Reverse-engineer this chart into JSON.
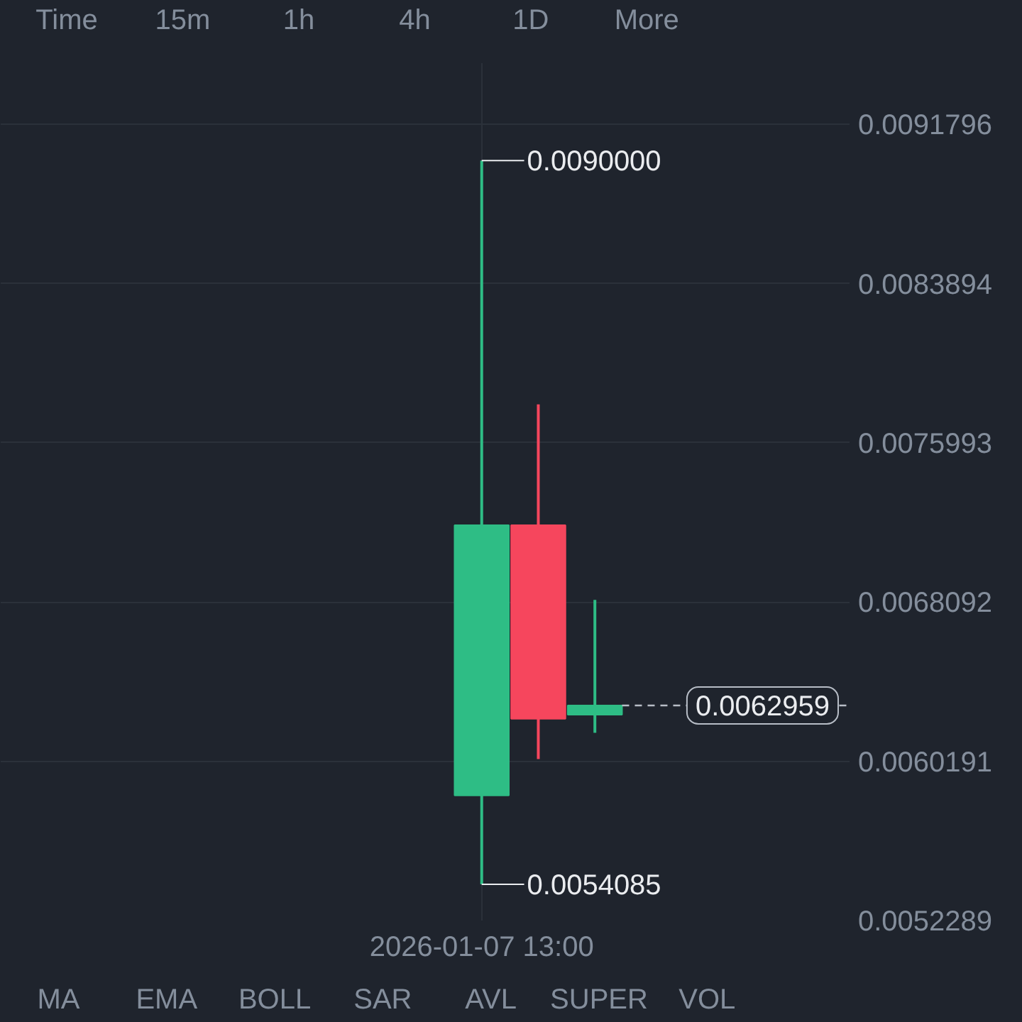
{
  "chart_data": {
    "type": "candlestick",
    "categories": [
      null,
      null,
      null,
      null,
      null,
      null,
      null,
      null,
      "2026-01-07 13:00",
      null,
      null,
      null,
      null,
      null,
      null
    ],
    "ohlc": [
      null,
      null,
      null,
      null,
      null,
      null,
      null,
      null,
      [
        0.00585,
        0.009,
        0.0054085,
        0.00719
      ],
      [
        0.00719,
        0.00779,
        0.00603,
        0.00623
      ],
      [
        0.00625,
        0.00682,
        0.00616,
        0.0062959
      ],
      null,
      null,
      null,
      null
    ],
    "colors": [
      null,
      null,
      null,
      null,
      null,
      null,
      null,
      null,
      "#2ebd85",
      "#f6465d",
      "#2ebd85",
      null,
      null,
      null,
      null
    ],
    "ylim": [
      0.0052289,
      0.009483
    ],
    "yticks": [
      0.0052289,
      0.0060191,
      0.0068092,
      0.0075993,
      0.0083894,
      0.0091796
    ],
    "grid": true,
    "ref_lines": [
      {
        "axis": "y",
        "value": 0.0062959,
        "label": "0.0062959",
        "line_style": "dashed",
        "color": "#b7bdc6"
      }
    ],
    "annotations": [
      {
        "text": "0.0090000",
        "x": "2026-01-07 13:00",
        "y": 0.009
      },
      {
        "text": "0.0054085",
        "x": "2026-01-07 13:00",
        "y": 0.0054085
      },
      "Time",
      "15m",
      "1h",
      "4h",
      "1D",
      "More",
      "MA",
      "EMA",
      "BOLL",
      "SAR",
      "AVL",
      "SUPER",
      "VOL"
    ]
  }
}
